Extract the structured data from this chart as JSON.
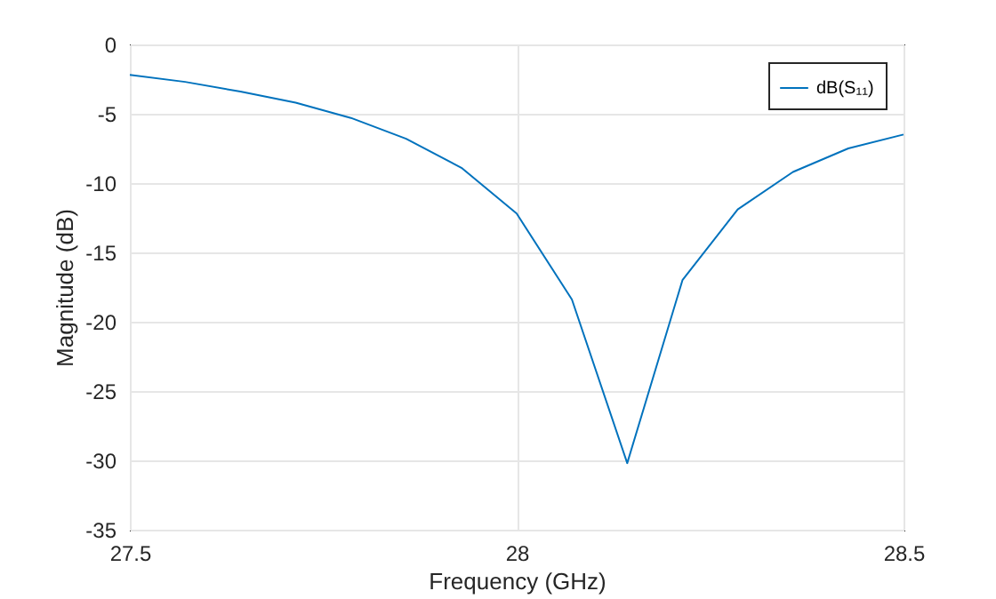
{
  "chart_data": {
    "type": "line",
    "xlabel": "Frequency (GHz)",
    "ylabel": "Magnitude (dB)",
    "x": [
      27.5,
      27.5714,
      27.6429,
      27.7143,
      27.7857,
      27.8571,
      27.9286,
      28.0,
      28.0714,
      28.1429,
      28.2143,
      28.2857,
      28.3571,
      28.4286,
      28.5
    ],
    "series": [
      {
        "name": "dB(S₁₁)",
        "color": "#0072bd",
        "values": [
          -2.2,
          -2.7,
          -3.4,
          -4.2,
          -5.3,
          -6.8,
          -8.9,
          -12.2,
          -18.4,
          -30.2,
          -17.0,
          -11.9,
          -9.2,
          -7.5,
          -6.5
        ]
      }
    ],
    "xlim": [
      27.5,
      28.5
    ],
    "xticks": [
      27.5,
      28,
      28.5
    ],
    "ylim": [
      -35,
      0
    ],
    "yticks": [
      -35,
      -30,
      -25,
      -20,
      -15,
      -10,
      -5,
      0
    ],
    "grid": true,
    "legend": "top right",
    "line_style": "solid"
  }
}
